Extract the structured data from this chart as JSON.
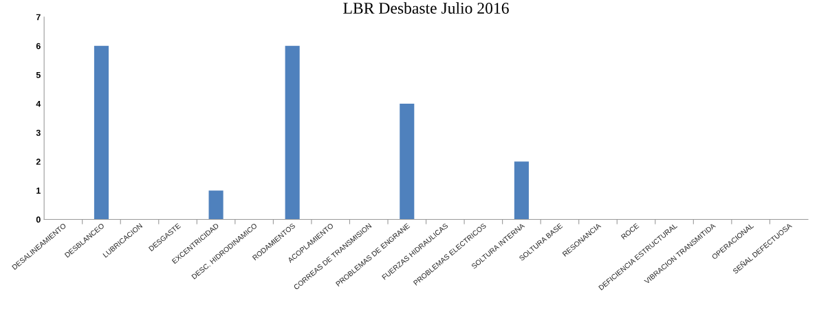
{
  "chart_data": {
    "type": "bar",
    "title": "LBR Desbaste Julio 2016",
    "categories": [
      "DESALINEAMIENTO",
      "DESBLANCEO",
      "LUBRICACION",
      "DESGASTE",
      "EXCENTRICIDAD",
      "DESC. HIDRODINAMICO",
      "RODAMIENTOS",
      "ACOPLAMIENTO",
      "CORREAS DE TRANSMISION",
      "PROBLEMAS DE ENGRANE",
      "FUERZAS HIDRAULICAS",
      "PROBLEMAS ELECTRICOS",
      "SOLTURA INTERNA",
      "SOLTURA BASE",
      "RESONANCIA",
      "ROCE",
      "DEFICIENCIA ESTRUCTURAL",
      "VIBRACION TRANSMITIDA",
      "OPERACIONAL",
      "SEÑAL DEFECTUOSA"
    ],
    "values": [
      0,
      6,
      0,
      0,
      1,
      0,
      6,
      0,
      0,
      4,
      0,
      0,
      2,
      0,
      0,
      0,
      0,
      0,
      0,
      0
    ],
    "color": "#4f81bd",
    "ylim": [
      0,
      7
    ],
    "yticks": [
      0,
      1,
      2,
      3,
      4,
      5,
      6,
      7
    ],
    "grid": false,
    "legend": false
  }
}
